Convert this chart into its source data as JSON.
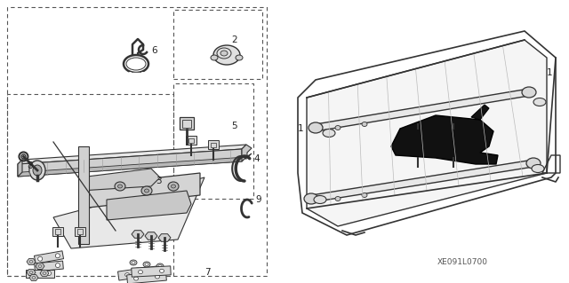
{
  "bg_color": "#ffffff",
  "lc": "#444444",
  "dc": "#333333",
  "figure_code": "XE091L0700"
}
